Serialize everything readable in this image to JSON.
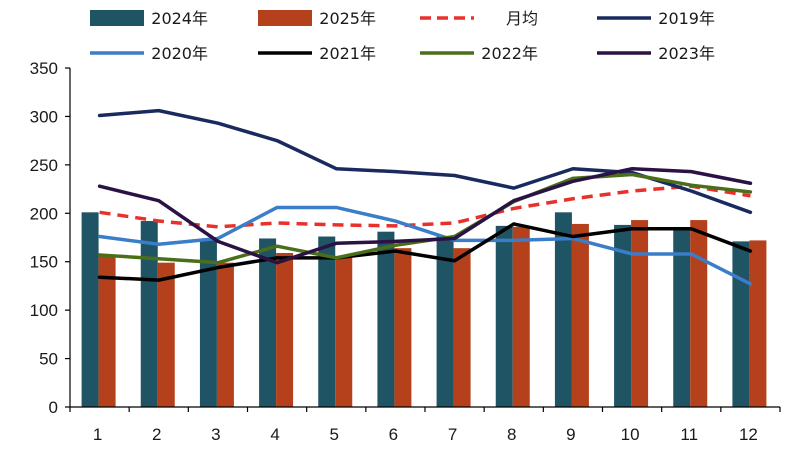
{
  "chart_data": {
    "type": "bar",
    "categories": [
      "1",
      "2",
      "3",
      "4",
      "5",
      "6",
      "7",
      "8",
      "9",
      "10",
      "11",
      "12"
    ],
    "ylim": [
      0,
      350
    ],
    "yticks": [
      "0",
      "50",
      "100",
      "150",
      "200",
      "250",
      "300",
      "350"
    ],
    "grid": false,
    "legend_position": "top",
    "bar_series": [
      {
        "name": "2024年",
        "color": "#1f5464",
        "values": [
          201,
          192,
          174,
          174,
          176,
          181,
          176,
          187,
          201,
          188,
          184,
          171
        ]
      },
      {
        "name": "2025年",
        "color": "#b5411c",
        "values": [
          156,
          149,
          149,
          159,
          156,
          164,
          164,
          186,
          189,
          193,
          193,
          172
        ]
      }
    ],
    "line_series": [
      {
        "name": "月均",
        "color": "#e8312b",
        "dashed": true,
        "values": [
          201,
          192,
          186,
          190,
          188,
          187,
          190,
          205,
          215,
          223,
          228,
          218
        ]
      },
      {
        "name": "2019年",
        "color": "#1b2a5e",
        "dashed": false,
        "values": [
          301,
          306,
          293,
          275,
          246,
          243,
          239,
          226,
          246,
          242,
          223,
          201
        ]
      },
      {
        "name": "2020年",
        "color": "#3a7dc8",
        "dashed": false,
        "values": [
          176,
          168,
          174,
          206,
          206,
          192,
          172,
          172,
          174,
          158,
          158,
          127
        ]
      },
      {
        "name": "2021年",
        "color": "#000000",
        "dashed": false,
        "values": [
          134,
          131,
          144,
          154,
          154,
          161,
          151,
          189,
          176,
          184,
          184,
          161
        ]
      },
      {
        "name": "2022年",
        "color": "#4b6e1a",
        "dashed": false,
        "values": [
          157,
          153,
          149,
          166,
          154,
          167,
          176,
          212,
          236,
          240,
          229,
          222
        ]
      },
      {
        "name": "2023年",
        "color": "#2a1245",
        "dashed": false,
        "values": [
          228,
          213,
          171,
          149,
          169,
          171,
          174,
          213,
          233,
          246,
          243,
          231
        ]
      }
    ]
  }
}
